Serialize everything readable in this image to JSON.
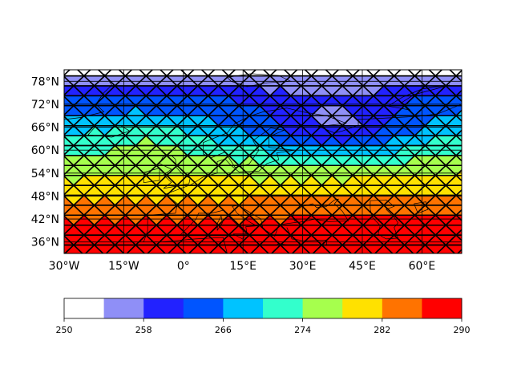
{
  "chart_data": {
    "type": "heatmap",
    "map": "filled contour of a scalar field on a triangular mesh over Europe / North Atlantic",
    "lon_range": [
      -30,
      70
    ],
    "lat_range": [
      33,
      81
    ],
    "x_ticks": [
      -30,
      -15,
      0,
      15,
      30,
      45,
      60
    ],
    "x_tick_labels": [
      "30°W",
      "15°W",
      "0°",
      "15°E",
      "30°E",
      "45°E",
      "60°E"
    ],
    "y_ticks": [
      36,
      42,
      48,
      54,
      60,
      66,
      72,
      78
    ],
    "y_tick_labels": [
      "36°N",
      "42°N",
      "48°N",
      "54°N",
      "60°N",
      "66°N",
      "72°N",
      "78°N"
    ],
    "levels": [
      250,
      254,
      258,
      262,
      266,
      270,
      274,
      278,
      282,
      286,
      290
    ],
    "colors": [
      "#ffffff",
      "#8f8ff7",
      "#2222ff",
      "#0055ff",
      "#00c3ff",
      "#33ffcc",
      "#a6ff4d",
      "#ffe100",
      "#ff7300",
      "#ff0000"
    ],
    "colorbar_ticks": [
      250,
      258,
      266,
      274,
      282,
      290
    ],
    "colorbar_tick_labels": [
      "250",
      "258",
      "266",
      "274",
      "282",
      "290"
    ],
    "grid": true,
    "coastlines": true,
    "mesh_edges": "black triangular mesh overlay"
  }
}
